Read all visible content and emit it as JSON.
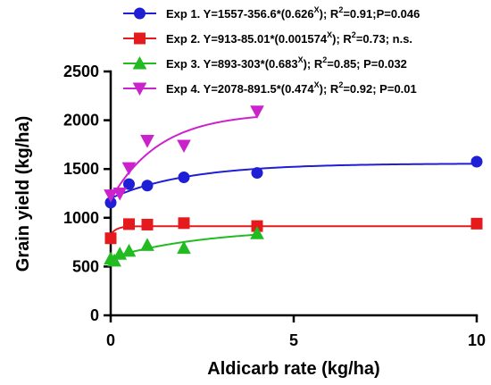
{
  "chart_data": {
    "type": "scatter",
    "title": "",
    "xlabel": "Aldicarb rate (kg/ha)",
    "ylabel": "Grain yield (kg/ha)",
    "xlim": [
      0,
      10
    ],
    "ylim": [
      0,
      2500
    ],
    "x_ticks": [
      0,
      5,
      10
    ],
    "y_ticks": [
      0,
      500,
      1000,
      1500,
      2000,
      2500
    ],
    "grid": false,
    "legend_position": "top",
    "series": [
      {
        "name": "Exp 1",
        "color": "#1f1fd6",
        "marker": "circle",
        "legend_parts": [
          "Exp 1. Y=1557-356.6*(0.626",
          "X",
          "); R",
          "2",
          "=0.91;P=0.046"
        ],
        "fit": {
          "a": 1557,
          "b": 356.6,
          "c": 0.626,
          "x_max": 10
        },
        "x": [
          0,
          0.5,
          1,
          2,
          4,
          10
        ],
        "y": [
          1155,
          1345,
          1330,
          1415,
          1460,
          1575
        ]
      },
      {
        "name": "Exp 2",
        "color": "#e41a1c",
        "marker": "square",
        "legend_parts": [
          "Exp 2. Y=913-85.01*(0.001574",
          "X",
          "); R",
          "2",
          "=0.73; n.s."
        ],
        "fit": {
          "a": 913,
          "b": 85.01,
          "c": 0.001574,
          "x_max": 10
        },
        "x": [
          0,
          0.5,
          1,
          2,
          4,
          10
        ],
        "y": [
          790,
          935,
          930,
          945,
          915,
          940
        ]
      },
      {
        "name": "Exp 3",
        "color": "#22bb22",
        "marker": "triangle-up",
        "legend_parts": [
          "Exp 3. Y=893-303*(0.683",
          "X",
          "); R",
          "2",
          "=0.85; P=0.032"
        ],
        "fit": {
          "a": 893,
          "b": 303,
          "c": 0.683,
          "x_max": 4
        },
        "x": [
          0,
          0.1,
          0.25,
          0.5,
          1,
          2,
          4
        ],
        "y": [
          580,
          560,
          630,
          660,
          720,
          690,
          840
        ]
      },
      {
        "name": "Exp 4",
        "color": "#cc22cc",
        "marker": "triangle-down",
        "legend_parts": [
          "Exp 4. Y=2078-891.5*(0.474",
          "X",
          "); R",
          "2",
          "=0.92; P=0.01"
        ],
        "fit": {
          "a": 2078,
          "b": 891.5,
          "c": 0.474,
          "x_max": 4
        },
        "x": [
          0,
          0.25,
          0.5,
          1,
          2,
          4
        ],
        "y": [
          1230,
          1250,
          1510,
          1790,
          1740,
          2090
        ]
      }
    ]
  }
}
